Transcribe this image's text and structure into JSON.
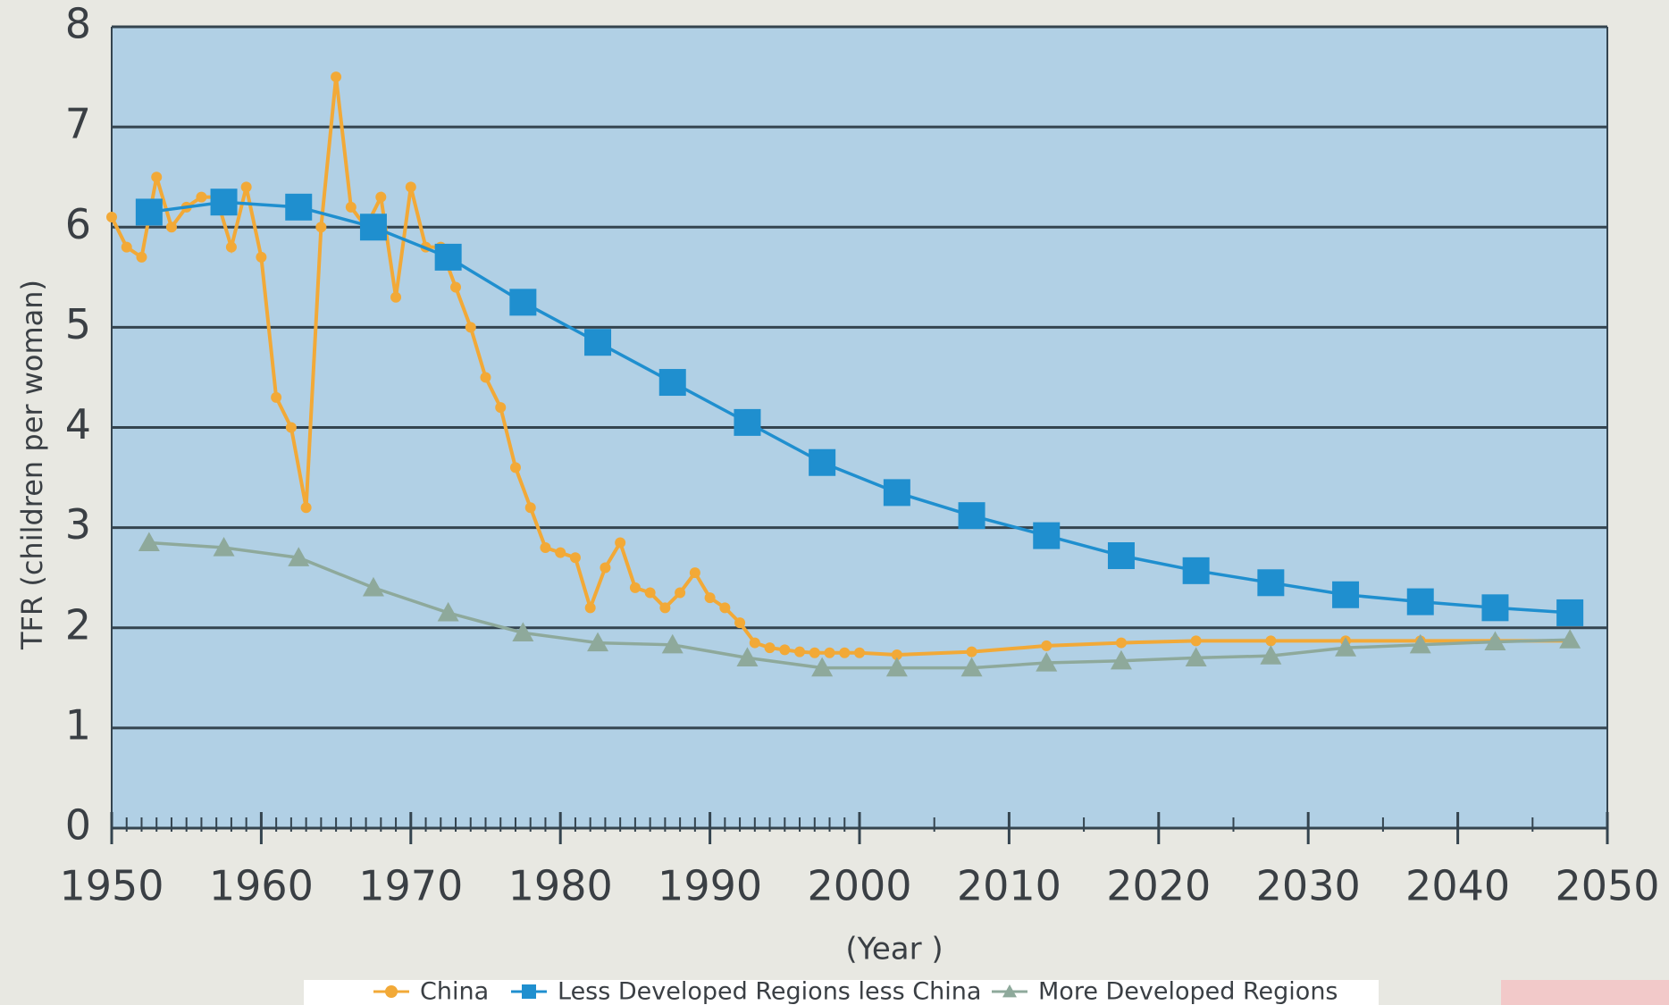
{
  "chart_data": {
    "type": "line",
    "x_label": "(Year )",
    "y_label": "TFR (children per woman)",
    "xlim": [
      1950,
      2050
    ],
    "xticks": [
      1950,
      1960,
      1970,
      1980,
      1990,
      2000,
      2010,
      2020,
      2030,
      2040,
      2050
    ],
    "xminorticks": [
      1951,
      1952,
      1953,
      1954,
      1955,
      1956,
      1957,
      1958,
      1959,
      1961,
      1962,
      1963,
      1964,
      1965,
      1966,
      1967,
      1968,
      1969,
      1971,
      1972,
      1973,
      1974,
      1975,
      1976,
      1977,
      1978,
      1979,
      1981,
      1982,
      1983,
      1984,
      1985,
      1986,
      1987,
      1988,
      1989,
      1991,
      1992,
      1993,
      1994,
      1995,
      1996,
      1997,
      1998,
      1999,
      2005,
      2015,
      2025,
      2035,
      2045
    ],
    "ylim": [
      0,
      8
    ],
    "yticks": [
      0,
      1,
      2,
      3,
      4,
      5,
      6,
      7,
      8
    ],
    "grid": true,
    "series": [
      {
        "name": "China",
        "color": "#f2a937",
        "x": [
          1950,
          1951,
          1952,
          1953,
          1954,
          1955,
          1956,
          1957,
          1958,
          1959,
          1960,
          1961,
          1962,
          1963,
          1964,
          1965,
          1966,
          1967,
          1968,
          1969,
          1970,
          1971,
          1972,
          1973,
          1974,
          1975,
          1976,
          1977,
          1978,
          1979,
          1980,
          1981,
          1982,
          1983,
          1984,
          1985,
          1986,
          1987,
          1988,
          1989,
          1990,
          1991,
          1992,
          1993,
          1994,
          1995,
          1996,
          1997,
          1998,
          1999,
          2000,
          2002.5,
          2007.5,
          2012.5,
          2017.5,
          2022.5,
          2027.5,
          2032.5,
          2037.5,
          2042.5,
          2047.5
        ],
        "values": [
          6.1,
          5.8,
          5.7,
          6.5,
          6.0,
          6.2,
          6.3,
          6.3,
          5.8,
          6.4,
          5.7,
          4.3,
          4.0,
          3.2,
          6.0,
          7.5,
          6.2,
          6.0,
          6.3,
          5.3,
          6.4,
          5.8,
          5.8,
          5.4,
          5.0,
          4.5,
          4.2,
          3.6,
          3.2,
          2.8,
          2.75,
          2.7,
          2.2,
          2.6,
          2.85,
          2.4,
          2.35,
          2.2,
          2.35,
          2.55,
          2.3,
          2.2,
          2.05,
          1.85,
          1.8,
          1.78,
          1.76,
          1.75,
          1.75,
          1.75,
          1.75,
          1.73,
          1.76,
          1.82,
          1.85,
          1.87,
          1.87,
          1.87,
          1.87,
          1.87,
          1.87
        ]
      },
      {
        "name": "Less Developed Regions less China",
        "color": "#1f8fcf",
        "x": [
          1952.5,
          1957.5,
          1962.5,
          1967.5,
          1972.5,
          1977.5,
          1982.5,
          1987.5,
          1992.5,
          1997.5,
          2002.5,
          2007.5,
          2012.5,
          2017.5,
          2022.5,
          2027.5,
          2032.5,
          2037.5,
          2042.5,
          2047.5
        ],
        "values": [
          6.15,
          6.25,
          6.2,
          6.0,
          5.7,
          5.25,
          4.85,
          4.45,
          4.05,
          3.65,
          3.35,
          3.12,
          2.92,
          2.72,
          2.57,
          2.45,
          2.33,
          2.26,
          2.2,
          2.15
        ]
      },
      {
        "name": "More Developed Regions",
        "color": "#8ea99b",
        "x": [
          1952.5,
          1957.5,
          1962.5,
          1967.5,
          1972.5,
          1977.5,
          1982.5,
          1987.5,
          1992.5,
          1997.5,
          2002.5,
          2007.5,
          2012.5,
          2017.5,
          2022.5,
          2027.5,
          2032.5,
          2037.5,
          2042.5,
          2047.5
        ],
        "values": [
          2.85,
          2.8,
          2.7,
          2.4,
          2.15,
          1.95,
          1.85,
          1.83,
          1.7,
          1.6,
          1.6,
          1.6,
          1.65,
          1.67,
          1.7,
          1.72,
          1.8,
          1.83,
          1.86,
          1.88
        ]
      }
    ]
  }
}
